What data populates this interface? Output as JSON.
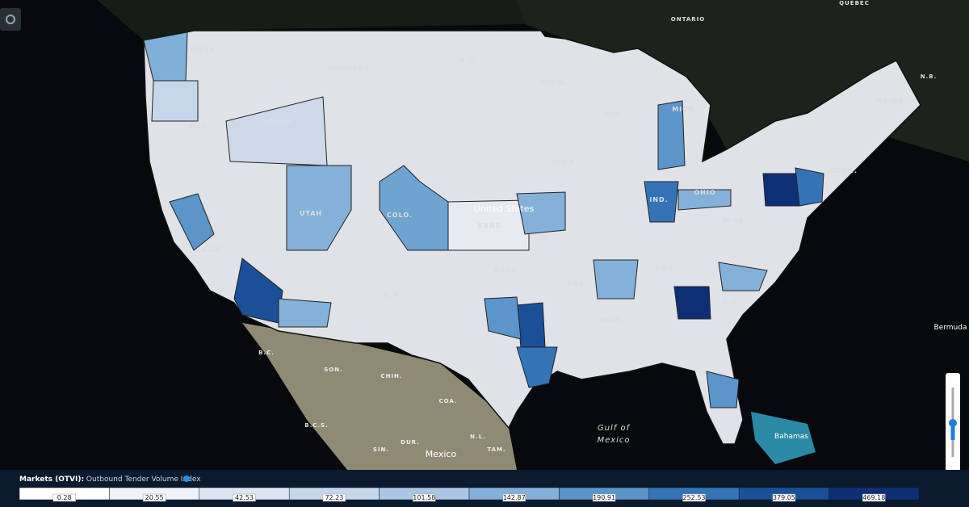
{
  "map": {
    "labels": [
      "ONTARIO",
      "QUÉBEC",
      "N.B.",
      "MAINE",
      "WASH.",
      "MONTANA",
      "N.D.",
      "MINN.",
      "WIS.",
      "MICH.",
      "IDAHO",
      "ORE.",
      "IOWA",
      "UTAH",
      "COLO.",
      "KANS.",
      "United States",
      "CALIF.",
      "OKLA.",
      "ARK.",
      "TENN.",
      "N.M.",
      "MISS.",
      "S.C.",
      "W.VA.",
      "OHIO",
      "IND.",
      "CONN.",
      "Gulf of",
      "Mexico",
      "Bahamas",
      "Bermuda",
      "Mexico",
      "SON.",
      "CHIH.",
      "COA.",
      "B.C.",
      "B.C.S.",
      "SIN.",
      "DUR.",
      "N.L.",
      "TAM."
    ]
  },
  "legend": {
    "title": "Markets (OTVI):",
    "subtitle": "Outbound Tender Volume Index",
    "values": [
      0.28,
      20.55,
      42.53,
      72.23,
      101.58,
      142.87,
      190.91,
      252.53,
      379.05,
      469.18
    ],
    "colors": [
      "#ffffff",
      "#eef3f9",
      "#dce6f2",
      "#c6d7eb",
      "#a9c6e2",
      "#85b1d8",
      "#5b95c9",
      "#3474b5",
      "#1b4f98",
      "#0f2f75"
    ]
  }
}
